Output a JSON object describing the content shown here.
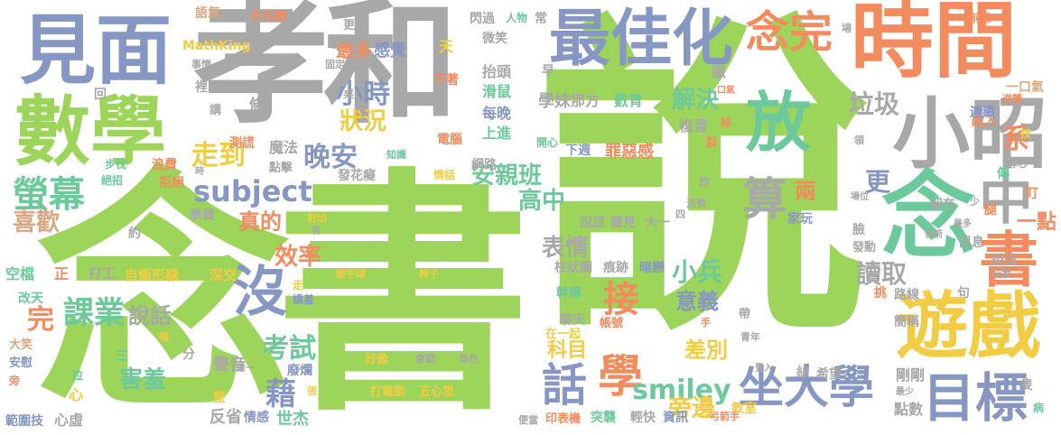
{
  "colors": {
    "green": "#9dd45a",
    "gray": "#a8a8a8",
    "blue": "#8797c4",
    "orange": "#f28c5e",
    "yellow": "#f2cc42",
    "teal": "#6cc99c",
    "tan": "#d9a882"
  },
  "words": [
    {
      "text": "念書",
      "color": "green"
    },
    {
      "text": "說",
      "color": "green"
    },
    {
      "text": "孝和",
      "color": "gray"
    },
    {
      "text": "見面",
      "color": "blue"
    },
    {
      "text": "數學",
      "color": "green"
    },
    {
      "text": "最佳化",
      "color": "blue"
    },
    {
      "text": "時間",
      "color": "orange"
    },
    {
      "text": "念完",
      "color": "orange"
    },
    {
      "text": "小昭",
      "color": "gray"
    },
    {
      "text": "念",
      "color": "teal"
    },
    {
      "text": "放",
      "color": "teal"
    },
    {
      "text": "中",
      "color": "gray"
    },
    {
      "text": "遊戲",
      "color": "yellow"
    },
    {
      "text": "書",
      "color": "orange"
    },
    {
      "text": "目標",
      "color": "blue"
    },
    {
      "text": "坐大學",
      "color": "blue"
    },
    {
      "text": "subject",
      "color": "blue"
    },
    {
      "text": "晚安",
      "color": "blue"
    },
    {
      "text": "螢幕",
      "color": "teal"
    },
    {
      "text": "課業",
      "color": "teal"
    },
    {
      "text": "沒",
      "color": "blue"
    },
    {
      "text": "話",
      "color": "blue"
    },
    {
      "text": "學",
      "color": "orange"
    },
    {
      "text": "smiley",
      "color": "teal"
    },
    {
      "text": "算",
      "color": "gray"
    },
    {
      "text": "小時",
      "color": "blue"
    },
    {
      "text": "走到",
      "color": "yellow"
    },
    {
      "text": "安親班",
      "color": "teal"
    },
    {
      "text": "狀況",
      "color": "yellow"
    },
    {
      "text": "最多",
      "color": "orange"
    },
    {
      "text": "感覺",
      "color": "blue"
    },
    {
      "text": "解決",
      "color": "teal"
    },
    {
      "text": "垃圾",
      "color": "gray"
    },
    {
      "text": "更",
      "color": "blue"
    },
    {
      "text": "系",
      "color": "orange"
    },
    {
      "text": "高中",
      "color": "teal"
    },
    {
      "text": "讀取",
      "color": "gray"
    },
    {
      "text": "效率",
      "color": "orange"
    },
    {
      "text": "考試",
      "color": "teal"
    },
    {
      "text": "害羞",
      "color": "teal"
    },
    {
      "text": "喜歡",
      "color": "tan"
    },
    {
      "text": "說話",
      "color": "gray"
    },
    {
      "text": "完",
      "color": "orange"
    },
    {
      "text": "表情",
      "color": "gray"
    },
    {
      "text": "小兵",
      "color": "teal"
    },
    {
      "text": "意義",
      "color": "blue"
    },
    {
      "text": "接",
      "color": "orange"
    },
    {
      "text": "差別",
      "color": "yellow"
    },
    {
      "text": "旁邊",
      "color": "yellow"
    },
    {
      "text": "藉",
      "color": "blue"
    },
    {
      "text": "科目",
      "color": "yellow"
    },
    {
      "text": "一點",
      "color": "orange"
    },
    {
      "text": "兩",
      "color": "orange"
    },
    {
      "text": "真的",
      "color": "orange"
    },
    {
      "text": "MathKing",
      "color": "yellow"
    },
    {
      "text": "自慚形穢",
      "color": "yellow"
    },
    {
      "text": "聲音",
      "color": "gray"
    },
    {
      "text": "反省",
      "color": "gray"
    },
    {
      "text": "世杰",
      "color": "teal"
    },
    {
      "text": "範圍技",
      "color": "blue"
    },
    {
      "text": "心虛",
      "color": "gray"
    },
    {
      "text": "改天",
      "color": "teal"
    },
    {
      "text": "空檔",
      "color": "teal"
    },
    {
      "text": "打工",
      "color": "gray"
    },
    {
      "text": "深交",
      "color": "yellow"
    },
    {
      "text": "學妹",
      "color": "gray"
    },
    {
      "text": "那方",
      "color": "gray"
    },
    {
      "text": "數青",
      "color": "teal"
    },
    {
      "text": "複習",
      "color": "gray"
    },
    {
      "text": "抬頭",
      "color": "gray"
    },
    {
      "text": "滑鼠",
      "color": "teal"
    },
    {
      "text": "每晚",
      "color": "blue"
    },
    {
      "text": "上進",
      "color": "teal"
    },
    {
      "text": "電腦",
      "color": "orange"
    },
    {
      "text": "罪惡感",
      "color": "orange"
    },
    {
      "text": "下週",
      "color": "blue"
    },
    {
      "text": "說謊",
      "color": "gray"
    },
    {
      "text": "聽見",
      "color": "gray"
    },
    {
      "text": "大一",
      "color": "gray"
    },
    {
      "text": "柱狀圖",
      "color": "gray"
    },
    {
      "text": "痕跡",
      "color": "gray"
    },
    {
      "text": "幹嘛",
      "color": "teal"
    },
    {
      "text": "暗戀",
      "color": "blue"
    },
    {
      "text": "帳號",
      "color": "orange"
    },
    {
      "text": "聊天",
      "color": "gray"
    },
    {
      "text": "家玩",
      "color": "blue"
    },
    {
      "text": "在一起",
      "color": "yellow"
    },
    {
      "text": "打電動",
      "color": "yellow"
    },
    {
      "text": "五心思",
      "color": "yellow"
    },
    {
      "text": "好像",
      "color": "yellow"
    },
    {
      "text": "會戳",
      "color": "gray"
    },
    {
      "text": "角色",
      "color": "gray"
    },
    {
      "text": "突襲",
      "color": "teal"
    },
    {
      "text": "輕快",
      "color": "gray"
    },
    {
      "text": "資訊",
      "color": "blue"
    },
    {
      "text": "點數",
      "color": "gray"
    },
    {
      "text": "剛剛",
      "color": "gray"
    },
    {
      "text": "簡稱",
      "color": "gray"
    },
    {
      "text": "路線",
      "color": "gray"
    },
    {
      "text": "說法",
      "color": "gray"
    },
    {
      "text": "玩家",
      "color": "gray"
    },
    {
      "text": "讀取",
      "color": "gray"
    },
    {
      "text": "敵人",
      "color": "orange"
    },
    {
      "text": "連續",
      "color": "blue"
    },
    {
      "text": "一口氣",
      "color": "tan"
    },
    {
      "text": "語氣",
      "color": "tan"
    },
    {
      "text": "手托腮",
      "color": "orange"
    },
    {
      "text": "更多",
      "color": "gray"
    },
    {
      "text": "閃過",
      "color": "gray"
    },
    {
      "text": "人物",
      "color": "teal"
    },
    {
      "text": "常",
      "color": "gray"
    },
    {
      "text": "微笑",
      "color": "gray"
    },
    {
      "text": "不著",
      "color": "orange"
    },
    {
      "text": "早",
      "color": "gray"
    },
    {
      "text": "繳",
      "color": "gray"
    },
    {
      "text": "教室",
      "color": "yellow"
    },
    {
      "text": "希望",
      "color": "gray"
    },
    {
      "text": "專心",
      "color": "gray"
    },
    {
      "text": "訊息",
      "color": "gray"
    },
    {
      "text": "發動",
      "color": "gray"
    },
    {
      "text": "臉",
      "color": "gray"
    },
    {
      "text": "留在",
      "color": "gray"
    },
    {
      "text": "浪費",
      "color": "orange"
    },
    {
      "text": "拒絕",
      "color": "orange"
    },
    {
      "text": "步伐",
      "color": "teal"
    },
    {
      "text": "絕招",
      "color": "teal"
    },
    {
      "text": "測謊",
      "color": "orange"
    },
    {
      "text": "魔法",
      "color": "gray"
    },
    {
      "text": "點擊",
      "color": "gray"
    },
    {
      "text": "發花癡",
      "color": "gray"
    },
    {
      "text": "學費",
      "color": "gray"
    },
    {
      "text": "射出",
      "color": "yellow"
    },
    {
      "text": "廢爛",
      "color": "blue"
    },
    {
      "text": "順手球",
      "color": "yellow"
    },
    {
      "text": "椅子",
      "color": "yellow"
    },
    {
      "text": "網路",
      "color": "gray"
    },
    {
      "text": "知識",
      "color": "teal"
    },
    {
      "text": "情話",
      "color": "yellow"
    },
    {
      "text": "情感",
      "color": "blue"
    },
    {
      "text": "便當",
      "color": "gray"
    },
    {
      "text": "印表機",
      "color": "orange"
    },
    {
      "text": "弓箭手",
      "color": "orange"
    },
    {
      "text": "青年",
      "color": "gray"
    },
    {
      "text": "天",
      "color": "yellow"
    },
    {
      "text": "條",
      "color": "gray"
    },
    {
      "text": "講",
      "color": "gray"
    },
    {
      "text": "裡",
      "color": "gray"
    },
    {
      "text": "回",
      "color": "gray"
    },
    {
      "text": "管理",
      "color": "gray"
    },
    {
      "text": "事情",
      "color": "gray"
    },
    {
      "text": "固定",
      "color": "gray"
    },
    {
      "text": "玩",
      "color": "gray"
    },
    {
      "text": "場",
      "color": "gray"
    },
    {
      "text": "前線",
      "color": "orange"
    },
    {
      "text": "逆轉",
      "color": "orange"
    },
    {
      "text": "技",
      "color": "yellow"
    },
    {
      "text": "領",
      "color": "gray"
    },
    {
      "text": "傳",
      "color": "teal"
    },
    {
      "text": "盯",
      "color": "orange"
    },
    {
      "text": "少",
      "color": "gray"
    },
    {
      "text": "腿",
      "color": "orange"
    },
    {
      "text": "句",
      "color": "gray"
    },
    {
      "text": "挑",
      "color": "orange"
    },
    {
      "text": "手",
      "color": "orange"
    },
    {
      "text": "絲",
      "color": "gray"
    },
    {
      "text": "隻",
      "color": "gray"
    },
    {
      "text": "病",
      "color": "teal"
    },
    {
      "text": "正",
      "color": "orange"
    },
    {
      "text": "約",
      "color": "gray"
    },
    {
      "text": "三",
      "color": "teal"
    },
    {
      "text": "分",
      "color": "gray"
    },
    {
      "text": "心",
      "color": "yellow"
    },
    {
      "text": "整",
      "color": "yellow"
    },
    {
      "text": "拉",
      "color": "teal"
    },
    {
      "text": "旁",
      "color": "orange"
    },
    {
      "text": "安慰",
      "color": "blue"
    },
    {
      "text": "大笑",
      "color": "tan"
    },
    {
      "text": "走",
      "color": "yellow"
    },
    {
      "text": "嬌羞",
      "color": "blue"
    },
    {
      "text": "第一",
      "color": "gray"
    },
    {
      "text": "張",
      "color": "yellow"
    },
    {
      "text": "項",
      "color": "gray"
    },
    {
      "text": "桌",
      "color": "gray"
    },
    {
      "text": "裂",
      "color": "orange"
    },
    {
      "text": "掉",
      "color": "orange"
    },
    {
      "text": "炸",
      "color": "gray"
    },
    {
      "text": "四",
      "color": "gray"
    },
    {
      "text": "沮喪",
      "color": "gray"
    },
    {
      "text": "開心",
      "color": "teal"
    },
    {
      "text": "帶",
      "color": "gray"
    },
    {
      "text": "口氣",
      "color": "orange"
    },
    {
      "text": "場位",
      "color": "gray"
    },
    {
      "text": "最多",
      "color": "gray"
    },
    {
      "text": "嗎",
      "color": "yellow"
    },
    {
      "text": "登入",
      "color": "gray"
    },
    {
      "text": "發箭",
      "color": "gray"
    },
    {
      "text": "最少",
      "color": "gray"
    },
    {
      "text": "時",
      "color": "gray"
    }
  ]
}
